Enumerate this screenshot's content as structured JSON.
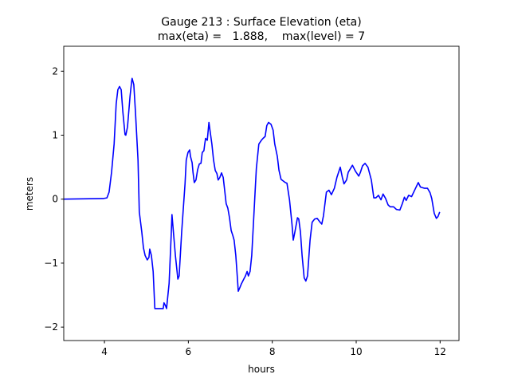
{
  "chart_data": {
    "type": "line",
    "title": "Gauge 213 : Surface Elevation (eta)",
    "subtitle": "max(eta) =   1.888,    max(level) = 7",
    "xlabel": "hours",
    "ylabel": "meters",
    "xlim": [
      3.03,
      12.45
    ],
    "ylim": [
      -2.21,
      2.39
    ],
    "xticks": [
      4,
      6,
      8,
      10,
      12
    ],
    "xtick_labels": [
      "4",
      "6",
      "8",
      "10",
      "12"
    ],
    "yticks": [
      -2,
      -1,
      0,
      1,
      2
    ],
    "ytick_labels": [
      "−2",
      "−1",
      "0",
      "1",
      "2"
    ],
    "grid": false,
    "series": [
      {
        "name": "eta",
        "color": "#0000ff",
        "x": [
          3.03,
          3.98,
          4.06,
          4.11,
          4.17,
          4.23,
          4.28,
          4.32,
          4.36,
          4.4,
          4.44,
          4.49,
          4.51,
          4.55,
          4.61,
          4.65,
          4.66,
          4.7,
          4.74,
          4.8,
          4.83,
          4.89,
          4.93,
          4.97,
          5.02,
          5.06,
          5.08,
          5.12,
          5.16,
          5.2,
          5.4,
          5.42,
          5.46,
          5.48,
          5.54,
          5.59,
          5.61,
          5.65,
          5.69,
          5.75,
          5.78,
          5.84,
          5.92,
          5.95,
          5.99,
          6.03,
          6.05,
          6.09,
          6.11,
          6.14,
          6.18,
          6.22,
          6.26,
          6.3,
          6.33,
          6.37,
          6.39,
          6.41,
          6.45,
          6.49,
          6.52,
          6.56,
          6.6,
          6.64,
          6.68,
          6.71,
          6.75,
          6.79,
          6.83,
          6.87,
          6.9,
          6.94,
          6.98,
          7.02,
          7.06,
          7.09,
          7.13,
          7.17,
          7.19,
          7.23,
          7.26,
          7.32,
          7.36,
          7.4,
          7.43,
          7.47,
          7.51,
          7.55,
          7.59,
          7.62,
          7.68,
          7.74,
          7.78,
          7.83,
          7.87,
          7.91,
          7.97,
          8.02,
          8.06,
          8.12,
          8.16,
          8.21,
          8.31,
          8.35,
          8.41,
          8.47,
          8.5,
          8.54,
          8.6,
          8.63,
          8.67,
          8.71,
          8.76,
          8.8,
          8.84,
          8.9,
          8.95,
          9.01,
          9.07,
          9.14,
          9.18,
          9.22,
          9.29,
          9.35,
          9.41,
          9.48,
          9.54,
          9.62,
          9.67,
          9.71,
          9.77,
          9.81,
          9.91,
          9.98,
          10.06,
          10.1,
          10.15,
          10.21,
          10.28,
          10.36,
          10.42,
          10.47,
          10.53,
          10.59,
          10.64,
          10.7,
          10.76,
          10.81,
          10.89,
          10.96,
          11.04,
          11.1,
          11.15,
          11.19,
          11.25,
          11.32,
          11.4,
          11.48,
          11.53,
          11.63,
          11.7,
          11.76,
          11.8,
          11.86,
          11.91,
          11.95,
          11.99
        ],
        "y": [
          0,
          0.01,
          0.02,
          0.11,
          0.42,
          0.86,
          1.49,
          1.71,
          1.76,
          1.71,
          1.36,
          1.01,
          1.0,
          1.13,
          1.61,
          1.85,
          1.888,
          1.79,
          1.36,
          0.61,
          -0.2,
          -0.51,
          -0.76,
          -0.88,
          -0.95,
          -0.91,
          -0.78,
          -0.88,
          -1.13,
          -1.71,
          -1.71,
          -1.62,
          -1.67,
          -1.71,
          -1.32,
          -0.57,
          -0.24,
          -0.57,
          -0.88,
          -1.25,
          -1.2,
          -0.51,
          0.24,
          0.61,
          0.73,
          0.77,
          0.67,
          0.57,
          0.42,
          0.26,
          0.3,
          0.46,
          0.55,
          0.56,
          0.73,
          0.76,
          0.86,
          0.95,
          0.92,
          1.2,
          1.05,
          0.86,
          0.61,
          0.45,
          0.4,
          0.3,
          0.34,
          0.41,
          0.34,
          0.11,
          -0.07,
          -0.14,
          -0.29,
          -0.49,
          -0.57,
          -0.64,
          -0.88,
          -1.25,
          -1.44,
          -1.38,
          -1.33,
          -1.25,
          -1.2,
          -1.13,
          -1.2,
          -1.13,
          -0.88,
          -0.39,
          0.11,
          0.48,
          0.86,
          0.92,
          0.95,
          0.98,
          1.15,
          1.2,
          1.17,
          1.08,
          0.86,
          0.67,
          0.45,
          0.31,
          0.26,
          0.25,
          -0.01,
          -0.39,
          -0.64,
          -0.51,
          -0.29,
          -0.31,
          -0.51,
          -0.88,
          -1.23,
          -1.28,
          -1.2,
          -0.64,
          -0.36,
          -0.31,
          -0.3,
          -0.36,
          -0.39,
          -0.26,
          0.11,
          0.14,
          0.07,
          0.17,
          0.34,
          0.5,
          0.34,
          0.24,
          0.3,
          0.42,
          0.53,
          0.44,
          0.36,
          0.42,
          0.52,
          0.56,
          0.5,
          0.3,
          0.02,
          0.02,
          0.06,
          -0.01,
          0.08,
          0.01,
          -0.09,
          -0.12,
          -0.12,
          -0.16,
          -0.17,
          -0.07,
          0.03,
          -0.02,
          0.06,
          0.04,
          0.15,
          0.26,
          0.19,
          0.17,
          0.17,
          0.1,
          0.01,
          -0.22,
          -0.3,
          -0.27,
          -0.2
        ]
      }
    ]
  }
}
